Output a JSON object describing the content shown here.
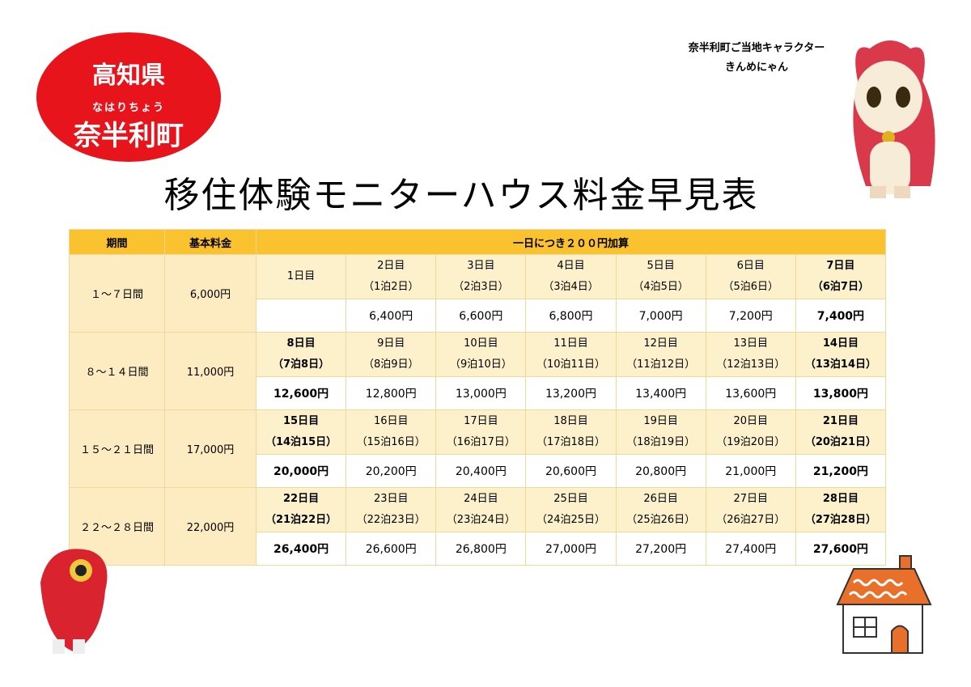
{
  "badge": {
    "prefecture": "高知県",
    "ruby": "なはりちょう",
    "town": "奈半利町"
  },
  "character": {
    "caption": "奈半利町ご当地キャラクター",
    "name": "きんめにゃん"
  },
  "title": "移住体験モニターハウス料金早見表",
  "table": {
    "header": [
      "期間",
      "基本料金",
      "一日につき２００円加算"
    ],
    "groups": [
      {
        "period": "１～７日間",
        "base": "6,000円",
        "days": [
          {
            "day": "1日目"
          },
          {
            "day": "2日目",
            "stay": "（1泊2日）",
            "price": "6,400円"
          },
          {
            "day": "3日目",
            "stay": "（2泊3日）",
            "price": "6,600円"
          },
          {
            "day": "4日目",
            "stay": "（3泊4日）",
            "price": "6,800円"
          },
          {
            "day": "5日目",
            "stay": "（4泊5日）",
            "price": "7,000円"
          },
          {
            "day": "6日目",
            "stay": "（5泊6日）",
            "price": "7,200円"
          },
          {
            "day": "7日目",
            "stay": "（6泊7日）",
            "price": "7,400円"
          }
        ]
      },
      {
        "period": "８～１４日間",
        "base": "11,000円",
        "days": [
          {
            "day": "8日目",
            "stay": "（7泊8日）",
            "price": "12,600円"
          },
          {
            "day": "9日目",
            "stay": "（8泊9日）",
            "price": "12,800円"
          },
          {
            "day": "10日目",
            "stay": "（9泊10日）",
            "price": "13,000円"
          },
          {
            "day": "11日目",
            "stay": "（10泊11日）",
            "price": "13,200円"
          },
          {
            "day": "12日目",
            "stay": "（11泊12日）",
            "price": "13,400円"
          },
          {
            "day": "13日目",
            "stay": "（12泊13日）",
            "price": "13,600円"
          },
          {
            "day": "14日目",
            "stay": "（13泊14日）",
            "price": "13,800円"
          }
        ]
      },
      {
        "period": "１５～２１日間",
        "base": "17,000円",
        "days": [
          {
            "day": "15日目",
            "stay": "（14泊15日）",
            "price": "20,000円"
          },
          {
            "day": "16日目",
            "stay": "（15泊16日）",
            "price": "20,200円"
          },
          {
            "day": "17日目",
            "stay": "（16泊17日）",
            "price": "20,400円"
          },
          {
            "day": "18日目",
            "stay": "（17泊18日）",
            "price": "20,600円"
          },
          {
            "day": "19日目",
            "stay": "（18泊19日）",
            "price": "20,800円"
          },
          {
            "day": "20日目",
            "stay": "（19泊20日）",
            "price": "21,000円"
          },
          {
            "day": "21日目",
            "stay": "（20泊21日）",
            "price": "21,200円"
          }
        ]
      },
      {
        "period": "２２～２８日間",
        "base": "22,000円",
        "days": [
          {
            "day": "22日目",
            "stay": "（21泊22日）",
            "price": "26,400円"
          },
          {
            "day": "23日目",
            "stay": "（22泊23日）",
            "price": "26,600円"
          },
          {
            "day": "24日目",
            "stay": "（23泊24日）",
            "price": "26,800円"
          },
          {
            "day": "25日目",
            "stay": "（24泊25日）",
            "price": "27,000円"
          },
          {
            "day": "26日目",
            "stay": "（25泊26日）",
            "price": "27,200円"
          },
          {
            "day": "27日目",
            "stay": "（26泊27日）",
            "price": "27,400円"
          },
          {
            "day": "28日目",
            "stay": "（27泊28日）",
            "price": "27,600円"
          }
        ]
      }
    ]
  }
}
